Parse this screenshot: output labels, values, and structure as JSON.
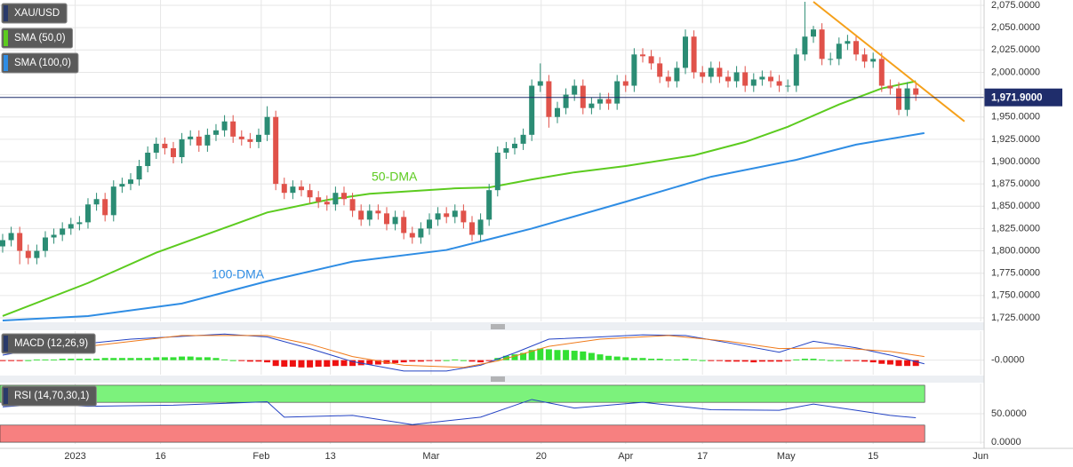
{
  "chart_data": [
    {
      "type": "candlestick",
      "xlim": [
        -0.31,
        115
      ],
      "xticks": [
        {
          "value": 8.5,
          "label": "2023"
        },
        {
          "value": 18.5,
          "label": "16"
        },
        {
          "value": 30.3,
          "label": "Feb"
        },
        {
          "value": 38.4,
          "label": "13"
        },
        {
          "value": 50.2,
          "label": "Mar"
        },
        {
          "value": 63.1,
          "label": "20"
        },
        {
          "value": 73,
          "label": "Apr"
        },
        {
          "value": 82,
          "label": "17"
        },
        {
          "value": 91.8,
          "label": "May"
        },
        {
          "value": 102,
          "label": "15"
        },
        {
          "value": 114.6,
          "label": "Jun"
        }
      ],
      "ylim": [
        1721,
        2081
      ],
      "yticks": [
        {
          "value": 1725,
          "label": "1,725.0000"
        },
        {
          "value": 1750,
          "label": "1,750.0000"
        },
        {
          "value": 1775,
          "label": "1,775.0000"
        },
        {
          "value": 1800,
          "label": "1,800.0000"
        },
        {
          "value": 1825,
          "label": "1,825.0000"
        },
        {
          "value": 1850,
          "label": "1,850.0000"
        },
        {
          "value": 1875,
          "label": "1,875.0000"
        },
        {
          "value": 1900,
          "label": "1,900.0000"
        },
        {
          "value": 1925,
          "label": "1,925.0000"
        },
        {
          "value": 1950,
          "label": "1,950.0000"
        },
        {
          "value": 1975,
          "label": "1,975.0000"
        },
        {
          "value": 2000,
          "label": "2,000.0000"
        },
        {
          "value": 2025,
          "label": "2,025.0000"
        },
        {
          "value": 2050,
          "label": "2,050.0000"
        },
        {
          "value": 2075,
          "label": "2,075.0000"
        }
      ],
      "grid": true,
      "series": [
        {
          "name": "XAU/USD",
          "color": "#2a3a6a",
          "up_color": "#2b8c74",
          "down_color": "#e0524a",
          "open": [
            1805,
            1812,
            1820,
            1800,
            1792,
            1800,
            1815,
            1818,
            1825,
            1830,
            1832,
            1852,
            1858,
            1840,
            1872,
            1875,
            1880,
            1895,
            1910,
            1920,
            1915,
            1905,
            1925,
            1928,
            1918,
            1930,
            1935,
            1945,
            1928,
            1925,
            1922,
            1930,
            1950,
            1875,
            1865,
            1872,
            1868,
            1860,
            1855,
            1852,
            1865,
            1858,
            1845,
            1835,
            1845,
            1842,
            1830,
            1838,
            1820,
            1815,
            1825,
            1835,
            1842,
            1838,
            1845,
            1832,
            1818,
            1835,
            1868,
            1910,
            1915,
            1920,
            1930,
            1985,
            1990,
            1950,
            1960,
            1975,
            1985,
            1960,
            1965,
            1970,
            1965,
            1990,
            1985,
            2020,
            2018,
            2010,
            1995,
            1990,
            2005,
            2040,
            2000,
            1995,
            2005,
            1995,
            1990,
            2000,
            1985,
            1992,
            1995,
            1990,
            1985,
            1985,
            2020,
            2040,
            2048,
            2015,
            2015,
            2032,
            2035,
            2020,
            2012,
            2015,
            1985,
            1982,
            1958,
            1982
          ],
          "high": [
            1819,
            1827,
            1827,
            1807,
            1807,
            1822,
            1825,
            1832,
            1837,
            1839,
            1859,
            1865,
            1865,
            1879,
            1882,
            1887,
            1902,
            1917,
            1927,
            1927,
            1922,
            1932,
            1935,
            1935,
            1937,
            1942,
            1952,
            1952,
            1935,
            1932,
            1937,
            1962,
            1957,
            1882,
            1879,
            1879,
            1875,
            1867,
            1862,
            1872,
            1872,
            1865,
            1852,
            1852,
            1852,
            1849,
            1845,
            1845,
            1827,
            1832,
            1842,
            1849,
            1849,
            1852,
            1852,
            1839,
            1842,
            1875,
            1917,
            1922,
            1927,
            1937,
            1992,
            2010,
            1997,
            1967,
            1982,
            1992,
            1992,
            1972,
            1977,
            1977,
            1997,
            1997,
            2027,
            2027,
            2025,
            2017,
            2002,
            2012,
            2048,
            2047,
            2007,
            2012,
            2012,
            2002,
            2007,
            2007,
            1999,
            2002,
            2002,
            1997,
            1992,
            2027,
            2079,
            2052,
            2055,
            2022,
            2039,
            2042,
            2042,
            2027,
            2022,
            2022,
            1992,
            1989,
            1989,
            1989
          ],
          "low": [
            1798,
            1805,
            1785,
            1785,
            1785,
            1793,
            1808,
            1811,
            1818,
            1823,
            1825,
            1845,
            1833,
            1833,
            1865,
            1868,
            1873,
            1888,
            1903,
            1908,
            1898,
            1898,
            1918,
            1911,
            1911,
            1923,
            1928,
            1921,
            1918,
            1915,
            1915,
            1923,
            1868,
            1858,
            1858,
            1861,
            1853,
            1848,
            1845,
            1845,
            1851,
            1838,
            1828,
            1828,
            1835,
            1823,
            1823,
            1813,
            1808,
            1808,
            1818,
            1828,
            1831,
            1831,
            1825,
            1811,
            1811,
            1828,
            1861,
            1903,
            1908,
            1913,
            1923,
            1978,
            1938,
            1943,
            1953,
            1968,
            1953,
            1953,
            1958,
            1958,
            1958,
            1978,
            1978,
            2011,
            2003,
            1988,
            1983,
            1983,
            1998,
            1993,
            1988,
            1988,
            1988,
            1983,
            1983,
            1978,
            1978,
            1985,
            1983,
            1978,
            1978,
            1978,
            2013,
            2033,
            2008,
            2008,
            2008,
            2025,
            2013,
            2005,
            2005,
            1978,
            1975,
            1952,
            1951,
            1968
          ],
          "close": [
            1812,
            1820,
            1800,
            1792,
            1800,
            1815,
            1818,
            1825,
            1830,
            1832,
            1852,
            1858,
            1840,
            1872,
            1875,
            1880,
            1895,
            1910,
            1920,
            1915,
            1905,
            1925,
            1928,
            1918,
            1930,
            1935,
            1945,
            1928,
            1925,
            1922,
            1930,
            1950,
            1875,
            1865,
            1872,
            1868,
            1860,
            1855,
            1852,
            1865,
            1858,
            1845,
            1835,
            1845,
            1842,
            1830,
            1838,
            1820,
            1815,
            1825,
            1835,
            1842,
            1838,
            1845,
            1832,
            1818,
            1835,
            1868,
            1910,
            1915,
            1920,
            1930,
            1985,
            1990,
            1950,
            1960,
            1975,
            1985,
            1960,
            1965,
            1970,
            1965,
            1990,
            1985,
            2020,
            2018,
            2010,
            1995,
            1990,
            2005,
            2040,
            2000,
            1995,
            2005,
            1995,
            1990,
            2000,
            1985,
            1992,
            1995,
            1990,
            1985,
            1985,
            2020,
            2040,
            2048,
            2015,
            2015,
            2032,
            2035,
            2020,
            2012,
            2015,
            1985,
            1982,
            1958,
            1982,
            1975
          ]
        },
        {
          "name": "SMA (50,0)",
          "color": "#5ccb1f",
          "x": [
            0,
            10,
            18,
            31,
            38,
            43,
            53,
            57,
            62,
            67,
            73,
            81,
            87,
            92,
            98,
            103,
            107
          ],
          "values": [
            1727,
            1764,
            1798,
            1843,
            1857,
            1864,
            1870,
            1871,
            1880,
            1888,
            1895,
            1907,
            1922,
            1939,
            1964,
            1982,
            1990
          ]
        },
        {
          "name": "SMA (100,0)",
          "color": "#2f8de4",
          "x": [
            0,
            10,
            21,
            31,
            41,
            52,
            57,
            62,
            73,
            83,
            93,
            100,
            108
          ],
          "values": [
            1722,
            1727,
            1741,
            1766,
            1788,
            1801,
            1813,
            1825,
            1855,
            1883,
            1902,
            1919,
            1932
          ]
        }
      ],
      "annotations": [
        "50-DMA",
        "100-DMA"
      ],
      "trendline": {
        "color": "#f5a01a",
        "x": [
          95,
          112.7
        ],
        "values": [
          2079,
          1945
        ]
      },
      "current_price": {
        "value": 1971.9,
        "label": "1,971.9000",
        "color": "#1f2d6b"
      }
    },
    {
      "type": "macd",
      "title": "MACD (12,26,9)",
      "ylim": [
        -20,
        40
      ],
      "yticks": [
        {
          "value": 0,
          "label": "-0.0000"
        }
      ],
      "macd": {
        "color": "#2443c4",
        "x": [
          0,
          5,
          15,
          26,
          31,
          36,
          41,
          47,
          52,
          56,
          60,
          64,
          70,
          75,
          80,
          85,
          91,
          95,
          100,
          104,
          108
        ],
        "values": [
          7,
          17,
          29,
          36,
          32,
          16,
          -2,
          -15,
          -15,
          -7,
          10,
          29,
          32,
          35,
          34,
          24,
          11,
          26,
          17,
          7,
          -5
        ]
      },
      "signal": {
        "color": "#f07a1a",
        "x": [
          0,
          10,
          21,
          31,
          36,
          41,
          47,
          54,
          58,
          64,
          70,
          78,
          85,
          91,
          98,
          104,
          108
        ],
        "values": [
          12,
          19,
          34,
          34,
          22,
          5,
          -7,
          -10,
          -1,
          19,
          29,
          34,
          26,
          16,
          17,
          12,
          5
        ]
      },
      "histogram": {
        "pos_color": "#33e033",
        "neg_color": "#ee1111",
        "values": [
          -1,
          -1,
          -1,
          0,
          1,
          1,
          1,
          2,
          2,
          2,
          2,
          2,
          3,
          3,
          3,
          3,
          3,
          3,
          4,
          4,
          4,
          5,
          5,
          4,
          4,
          3,
          1,
          0,
          -1,
          -2,
          -2,
          -3,
          -8,
          -9,
          -9,
          -10,
          -10,
          -9,
          -9,
          -8,
          -8,
          -8,
          -7,
          -6,
          -6,
          -5,
          -4,
          -3,
          -2,
          -2,
          -1,
          -1,
          0,
          1,
          0,
          -2,
          -3,
          -1,
          3,
          6,
          8,
          10,
          14,
          16,
          15,
          14,
          14,
          13,
          12,
          10,
          8,
          6,
          5,
          4,
          3,
          3,
          2,
          2,
          1,
          1,
          2,
          1,
          0,
          -1,
          -1,
          -2,
          -2,
          -2,
          -3,
          -2,
          -2,
          -2,
          -1,
          1,
          2,
          2,
          1,
          0,
          0,
          -1,
          -1,
          -2,
          -3,
          -5,
          -6,
          -8,
          -8,
          -8
        ]
      }
    },
    {
      "type": "rsi",
      "title": "RSI (14,70,30,1)",
      "ylim": [
        -3,
        103
      ],
      "yticks": [
        {
          "value": 50,
          "label": "50.0000"
        },
        {
          "value": 0,
          "label": "0.0000"
        }
      ],
      "bands": [
        {
          "from": 70,
          "to": 100,
          "color": "#7cf27c"
        },
        {
          "from": 0,
          "to": 30,
          "color": "#f78080"
        }
      ],
      "series": [
        {
          "color": "#2443c4",
          "x": [
            0,
            5,
            10,
            20,
            31,
            33,
            41,
            48,
            56,
            62,
            67,
            75,
            83,
            91,
            95,
            100,
            104,
            107
          ],
          "values": [
            62,
            67,
            63,
            65,
            71,
            44,
            47,
            31,
            44,
            75,
            60,
            70,
            57,
            56,
            67,
            56,
            47,
            43
          ]
        }
      ]
    }
  ]
}
